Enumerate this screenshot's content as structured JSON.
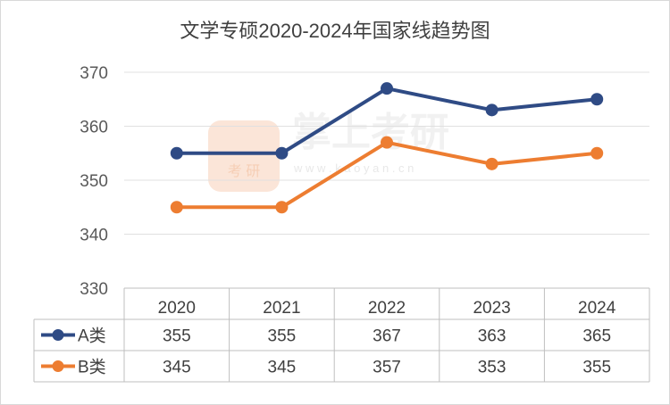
{
  "chart_data": {
    "type": "line",
    "title": "文学专硕2020-2024年国家线趋势图",
    "categories": [
      "2020",
      "2021",
      "2022",
      "2023",
      "2024"
    ],
    "series": [
      {
        "name": "A类",
        "values": [
          355,
          355,
          367,
          363,
          365
        ],
        "color": "#2f4b85"
      },
      {
        "name": "B类",
        "values": [
          345,
          345,
          357,
          353,
          355
        ],
        "color": "#ed7d31"
      }
    ],
    "ylim": [
      330,
      370
    ],
    "yticks": [
      330,
      340,
      350,
      360,
      370
    ],
    "grid": true,
    "legend": "data-table"
  },
  "watermark": {
    "brand": "掌上考研",
    "logo_text": "考 研",
    "url": "w w w . k a o y a n . c n"
  }
}
